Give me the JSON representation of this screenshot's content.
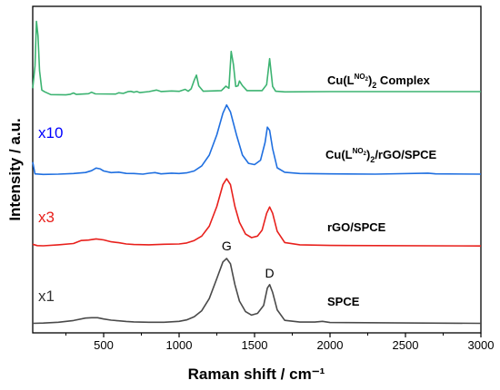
{
  "chart_data": {
    "type": "line",
    "title": "",
    "xlabel": "Raman shift / cm⁻¹",
    "ylabel": "Intensity / a.u.",
    "xlim": [
      30,
      3000
    ],
    "x_ticks": [
      500,
      1000,
      1500,
      2000,
      2500,
      3000
    ],
    "y_ticks": false,
    "grid": false,
    "legend": "none",
    "series": [
      {
        "name": "Cu(L^NO2)2 Complex",
        "label_main": "Cu(L",
        "label_sup": "NO",
        "label_sup_sub": "2",
        "label_close": ")",
        "label_sub": "2",
        "label_tail": " Complex",
        "multiplier": "",
        "color": "#3cb371",
        "baseline": 0.97,
        "points": [
          [
            30,
            1.25
          ],
          [
            45,
            3.1
          ],
          [
            55,
            6.8
          ],
          [
            65,
            5.6
          ],
          [
            75,
            2.7
          ],
          [
            90,
            1.1
          ],
          [
            110,
            0.95
          ],
          [
            150,
            0.72
          ],
          [
            250,
            0.7
          ],
          [
            280,
            0.75
          ],
          [
            300,
            0.86
          ],
          [
            320,
            0.74
          ],
          [
            400,
            0.8
          ],
          [
            420,
            0.92
          ],
          [
            445,
            0.78
          ],
          [
            580,
            0.77
          ],
          [
            600,
            0.87
          ],
          [
            630,
            0.82
          ],
          [
            660,
            0.96
          ],
          [
            680,
            0.99
          ],
          [
            700,
            0.92
          ],
          [
            720,
            0.98
          ],
          [
            740,
            0.89
          ],
          [
            800,
            0.97
          ],
          [
            850,
            1.1
          ],
          [
            880,
            0.98
          ],
          [
            950,
            1.02
          ],
          [
            1000,
            0.99
          ],
          [
            1040,
            1.16
          ],
          [
            1060,
            1.0
          ],
          [
            1080,
            1.2
          ],
          [
            1100,
            1.9
          ],
          [
            1115,
            2.34
          ],
          [
            1130,
            1.45
          ],
          [
            1160,
            1.0
          ],
          [
            1280,
            1.05
          ],
          [
            1310,
            1.42
          ],
          [
            1330,
            1.25
          ],
          [
            1345,
            4.3
          ],
          [
            1360,
            3.2
          ],
          [
            1375,
            1.4
          ],
          [
            1390,
            1.45
          ],
          [
            1400,
            1.85
          ],
          [
            1420,
            1.46
          ],
          [
            1450,
            1.05
          ],
          [
            1550,
            1.05
          ],
          [
            1580,
            1.55
          ],
          [
            1600,
            3.7
          ],
          [
            1620,
            1.4
          ],
          [
            1640,
            1.0
          ],
          [
            1700,
            0.95
          ],
          [
            2000,
            0.97
          ],
          [
            3000,
            0.97
          ]
        ]
      },
      {
        "name": "Cu(L^NO2)2/rGO/SPCE",
        "label_main": "Cu(L",
        "label_sup": "NO",
        "label_sup_sub": "2",
        "label_close": ")",
        "label_sub": "2",
        "label_tail": "/rGO/SPCE",
        "multiplier": "x10",
        "multiplier_color": "#0000ff",
        "color": "#1f6fe0",
        "baseline": 0.1,
        "points": [
          [
            30,
            1.05
          ],
          [
            38,
            0.55
          ],
          [
            45,
            0.12
          ],
          [
            100,
            0.08
          ],
          [
            200,
            0.1
          ],
          [
            300,
            0.15
          ],
          [
            380,
            0.23
          ],
          [
            420,
            0.37
          ],
          [
            450,
            0.58
          ],
          [
            475,
            0.52
          ],
          [
            500,
            0.35
          ],
          [
            550,
            0.22
          ],
          [
            600,
            0.26
          ],
          [
            650,
            0.16
          ],
          [
            700,
            0.15
          ],
          [
            760,
            0.1
          ],
          [
            800,
            0.17
          ],
          [
            840,
            0.22
          ],
          [
            880,
            0.12
          ],
          [
            950,
            0.18
          ],
          [
            1000,
            0.15
          ],
          [
            1050,
            0.2
          ],
          [
            1100,
            0.35
          ],
          [
            1150,
            0.75
          ],
          [
            1200,
            1.6
          ],
          [
            1250,
            3.2
          ],
          [
            1290,
            4.9
          ],
          [
            1315,
            5.55
          ],
          [
            1340,
            5.0
          ],
          [
            1380,
            3.2
          ],
          [
            1420,
            1.6
          ],
          [
            1460,
            0.95
          ],
          [
            1500,
            0.85
          ],
          [
            1540,
            1.2
          ],
          [
            1570,
            2.6
          ],
          [
            1585,
            3.8
          ],
          [
            1600,
            3.55
          ],
          [
            1620,
            2.1
          ],
          [
            1650,
            0.6
          ],
          [
            1700,
            0.25
          ],
          [
            1800,
            0.15
          ],
          [
            2000,
            0.12
          ],
          [
            2300,
            0.1
          ],
          [
            2650,
            0.18
          ],
          [
            2700,
            0.12
          ],
          [
            3000,
            0.1
          ]
        ]
      },
      {
        "name": "rGO/SPCE",
        "label_main": "rGO/SPCE",
        "multiplier": "x3",
        "multiplier_color": "#e8201c",
        "color": "#e8201c",
        "baseline": 0.02,
        "points": [
          [
            30,
            0.18
          ],
          [
            60,
            0.04
          ],
          [
            100,
            0.02
          ],
          [
            200,
            0.12
          ],
          [
            300,
            0.25
          ],
          [
            350,
            0.55
          ],
          [
            400,
            0.6
          ],
          [
            450,
            0.72
          ],
          [
            500,
            0.62
          ],
          [
            550,
            0.42
          ],
          [
            600,
            0.33
          ],
          [
            650,
            0.2
          ],
          [
            700,
            0.15
          ],
          [
            800,
            0.12
          ],
          [
            900,
            0.18
          ],
          [
            1000,
            0.2
          ],
          [
            1050,
            0.3
          ],
          [
            1100,
            0.55
          ],
          [
            1150,
            1.0
          ],
          [
            1200,
            2.0
          ],
          [
            1250,
            4.0
          ],
          [
            1290,
            6.2
          ],
          [
            1315,
            6.8
          ],
          [
            1340,
            6.2
          ],
          [
            1370,
            4.0
          ],
          [
            1400,
            2.4
          ],
          [
            1440,
            1.2
          ],
          [
            1480,
            0.85
          ],
          [
            1520,
            1.0
          ],
          [
            1550,
            1.6
          ],
          [
            1580,
            3.3
          ],
          [
            1600,
            3.95
          ],
          [
            1620,
            3.3
          ],
          [
            1650,
            1.5
          ],
          [
            1700,
            0.35
          ],
          [
            1800,
            0.12
          ],
          [
            2000,
            0.06
          ],
          [
            3000,
            0.0
          ]
        ]
      },
      {
        "name": "SPCE",
        "label_main": "SPCE",
        "multiplier": "x1",
        "multiplier_color": "#333333",
        "color": "#4a4a4a",
        "baseline": 0.0,
        "points": [
          [
            30,
            0.05
          ],
          [
            100,
            0.08
          ],
          [
            200,
            0.18
          ],
          [
            300,
            0.38
          ],
          [
            380,
            0.66
          ],
          [
            420,
            0.7
          ],
          [
            460,
            0.7
          ],
          [
            500,
            0.55
          ],
          [
            550,
            0.42
          ],
          [
            600,
            0.34
          ],
          [
            650,
            0.27
          ],
          [
            700,
            0.22
          ],
          [
            800,
            0.18
          ],
          [
            900,
            0.18
          ],
          [
            1000,
            0.28
          ],
          [
            1050,
            0.45
          ],
          [
            1100,
            0.8
          ],
          [
            1150,
            1.5
          ],
          [
            1200,
            2.9
          ],
          [
            1250,
            5.2
          ],
          [
            1290,
            7.1
          ],
          [
            1315,
            7.5
          ],
          [
            1340,
            6.9
          ],
          [
            1370,
            4.5
          ],
          [
            1400,
            2.6
          ],
          [
            1440,
            1.4
          ],
          [
            1480,
            1.0
          ],
          [
            1520,
            1.2
          ],
          [
            1560,
            2.1
          ],
          [
            1585,
            4.1
          ],
          [
            1600,
            4.5
          ],
          [
            1620,
            3.6
          ],
          [
            1650,
            1.6
          ],
          [
            1700,
            0.4
          ],
          [
            1800,
            0.2
          ],
          [
            1900,
            0.2
          ],
          [
            1950,
            0.28
          ],
          [
            2000,
            0.15
          ],
          [
            3000,
            0.05
          ]
        ]
      }
    ],
    "annotations": [
      {
        "text": "G",
        "x": 1315
      },
      {
        "text": "D",
        "x": 1600
      }
    ]
  }
}
